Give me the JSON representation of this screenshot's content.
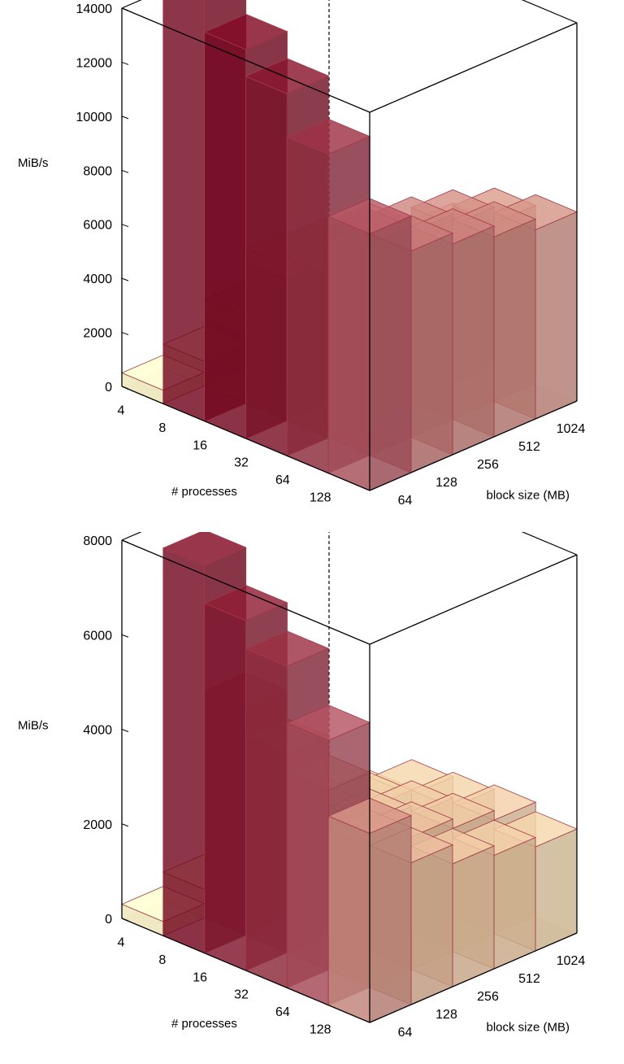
{
  "chart_data": [
    {
      "type": "bar3d",
      "title": "",
      "xlabel": "# processes",
      "ylabel": "block size (MB)",
      "zlabel": "MiB/s",
      "x_categories": [
        "128",
        "64",
        "32",
        "16",
        "8",
        "4"
      ],
      "y_categories": [
        "64",
        "128",
        "256",
        "512",
        "1024"
      ],
      "z_ticks": [
        "0",
        "2000",
        "4000",
        "6000",
        "8000",
        "10000",
        "12000",
        "14000"
      ],
      "zlim": [
        0,
        14000
      ],
      "values": [
        [
          9500,
          8200,
          7800,
          7400,
          7000
        ],
        [
          11800,
          7800,
          7600,
          7200,
          6600
        ],
        [
          13400,
          6000,
          5800,
          5600,
          5400
        ],
        [
          14400,
          5200,
          5600,
          5400,
          2600
        ],
        [
          15600,
          3200,
          4400,
          4000,
          1800
        ],
        [
          500,
          900,
          1200,
          1000,
          800
        ]
      ]
    },
    {
      "type": "bar3d",
      "title": "",
      "xlabel": "# processes",
      "ylabel": "block size (MB)",
      "zlabel": "MiB/s",
      "x_categories": [
        "128",
        "64",
        "32",
        "16",
        "8",
        "4"
      ],
      "y_categories": [
        "64",
        "128",
        "256",
        "512",
        "1024"
      ],
      "z_ticks": [
        "0",
        "2000",
        "4000",
        "6000",
        "8000"
      ],
      "zlim": [
        0,
        8000
      ],
      "values": [
        [
          4000,
          3000,
          2600,
          2400,
          2200
        ],
        [
          5600,
          3000,
          2800,
          2600,
          2400
        ],
        [
          6800,
          3800,
          2700,
          2500,
          2300
        ],
        [
          7400,
          4200,
          2400,
          2300,
          2200
        ],
        [
          8200,
          4800,
          2000,
          1800,
          1600
        ],
        [
          300,
          600,
          800,
          900,
          700
        ]
      ]
    }
  ]
}
